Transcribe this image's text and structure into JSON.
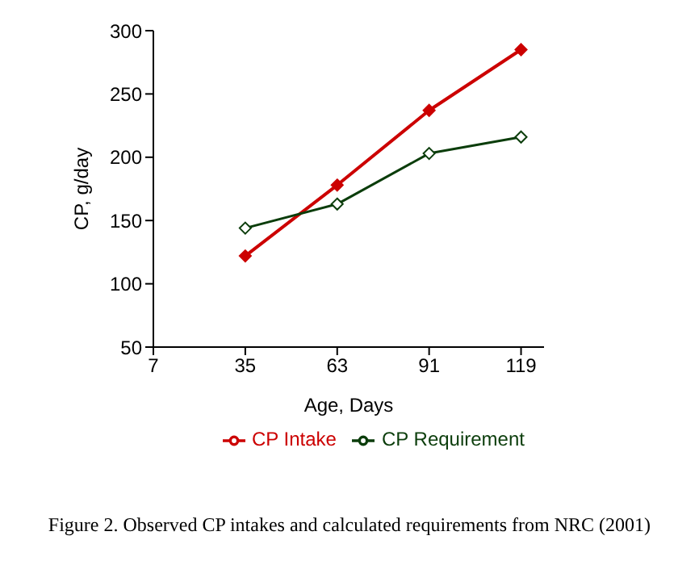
{
  "chart_data": {
    "type": "line",
    "x": [
      35,
      63,
      91,
      119
    ],
    "series": [
      {
        "name": "CP Intake",
        "color": "#cc0000",
        "values": [
          122,
          178,
          237,
          285
        ]
      },
      {
        "name": "CP Requirement",
        "color": "#0b3d0b",
        "values": [
          144,
          163,
          203,
          216
        ]
      }
    ],
    "xlabel": "Age, Days",
    "ylabel": "CP, g/day",
    "xlim": [
      7,
      126
    ],
    "xticks": [
      7,
      35,
      63,
      91,
      119
    ],
    "ylim": [
      50,
      300
    ],
    "yticks": [
      50,
      100,
      150,
      200,
      250,
      300
    ],
    "grid": false,
    "legend": "bottom",
    "marker": "diamond",
    "line_style": "solid",
    "annotations": [
      "Figure 2. Observed CP intakes and calculated requirements from NRC (2001)"
    ]
  }
}
